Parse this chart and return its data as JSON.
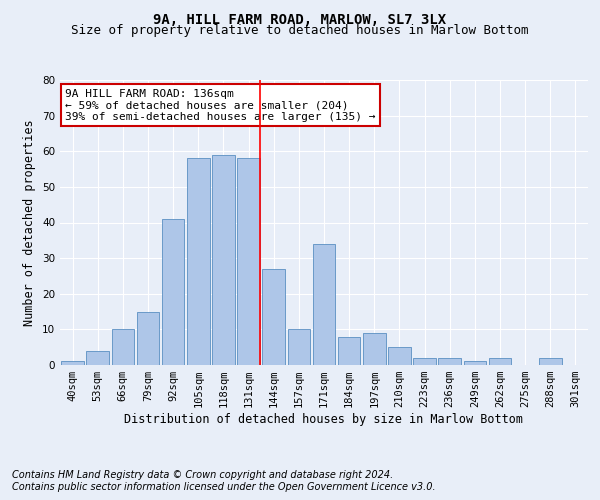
{
  "title": "9A, HILL FARM ROAD, MARLOW, SL7 3LX",
  "subtitle": "Size of property relative to detached houses in Marlow Bottom",
  "xlabel": "Distribution of detached houses by size in Marlow Bottom",
  "ylabel": "Number of detached properties",
  "categories": [
    "40sqm",
    "53sqm",
    "66sqm",
    "79sqm",
    "92sqm",
    "105sqm",
    "118sqm",
    "131sqm",
    "144sqm",
    "157sqm",
    "171sqm",
    "184sqm",
    "197sqm",
    "210sqm",
    "223sqm",
    "236sqm",
    "249sqm",
    "262sqm",
    "275sqm",
    "288sqm",
    "301sqm"
  ],
  "values": [
    1,
    4,
    10,
    15,
    41,
    58,
    59,
    58,
    27,
    10,
    34,
    8,
    9,
    5,
    2,
    2,
    1,
    2,
    0,
    2,
    0
  ],
  "bar_color": "#aec6e8",
  "bar_edge_color": "#5a8fc2",
  "ylim": [
    0,
    80
  ],
  "yticks": [
    0,
    10,
    20,
    30,
    40,
    50,
    60,
    70,
    80
  ],
  "marker_bin_index": 7,
  "annotation_text": "9A HILL FARM ROAD: 136sqm\n← 59% of detached houses are smaller (204)\n39% of semi-detached houses are larger (135) →",
  "annotation_box_color": "#ffffff",
  "annotation_box_edge_color": "#cc0000",
  "footer_line1": "Contains HM Land Registry data © Crown copyright and database right 2024.",
  "footer_line2": "Contains public sector information licensed under the Open Government Licence v3.0.",
  "bg_color": "#e8eef8",
  "grid_color": "#ffffff",
  "title_fontsize": 10,
  "subtitle_fontsize": 9,
  "axis_label_fontsize": 8.5,
  "tick_fontsize": 7.5,
  "annotation_fontsize": 8,
  "footer_fontsize": 7
}
